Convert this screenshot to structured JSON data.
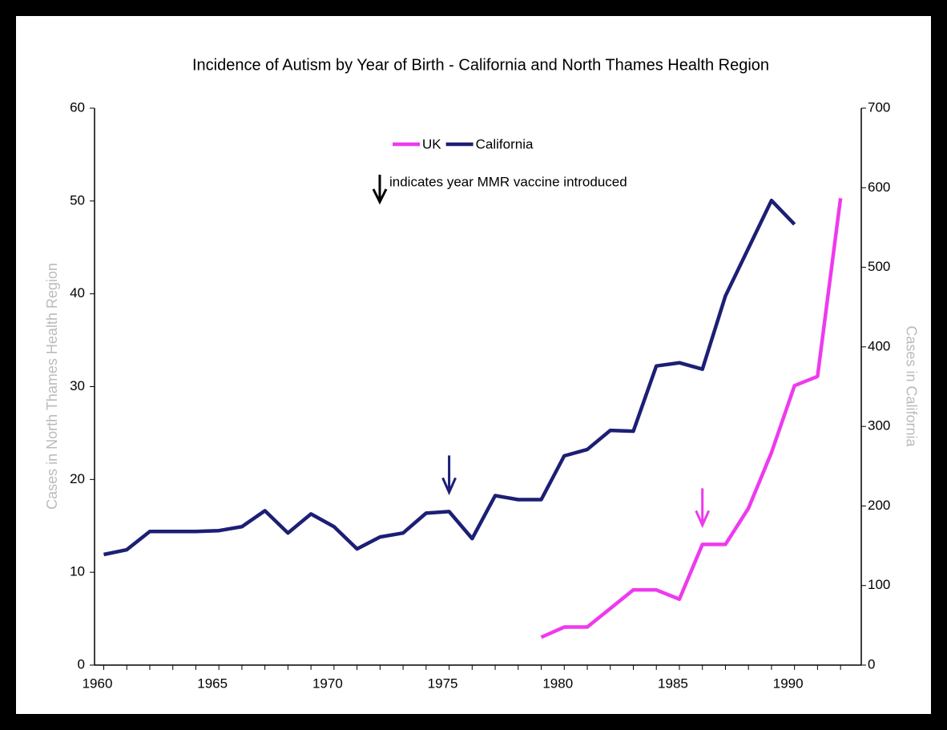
{
  "chart_data": {
    "type": "line",
    "title": "Incidence of Autism by Year of Birth - California and North Thames Health Region",
    "y_label": "Cases in North Thames Health Region",
    "y2_label": "Cases in California",
    "annotation": "indicates year MMR vaccine introduced",
    "x": [
      1960,
      1961,
      1962,
      1963,
      1964,
      1965,
      1966,
      1967,
      1968,
      1969,
      1970,
      1971,
      1972,
      1973,
      1974,
      1975,
      1976,
      1977,
      1978,
      1979,
      1980,
      1981,
      1982,
      1983,
      1984,
      1985,
      1986,
      1987,
      1988,
      1989,
      1990,
      1991,
      1992
    ],
    "series": [
      {
        "name": "UK",
        "color": "#ee3aee",
        "axis": "y",
        "mmr_year": 1986,
        "values": [
          null,
          null,
          null,
          null,
          null,
          null,
          null,
          null,
          null,
          null,
          null,
          null,
          null,
          null,
          null,
          null,
          null,
          null,
          null,
          3.0,
          4.1,
          4.1,
          6.1,
          8.1,
          8.1,
          7.1,
          13.0,
          13.0,
          16.9,
          22.9,
          30.1,
          31.1,
          50.3
        ]
      },
      {
        "name": "California",
        "color": "#1c1f74",
        "axis": "y2",
        "mmr_year": 1975,
        "values": [
          139,
          145,
          168,
          168,
          168,
          169,
          174,
          194,
          166,
          190,
          174,
          146,
          161,
          166,
          191,
          193,
          159,
          213,
          208,
          208,
          263,
          271,
          295,
          294,
          376,
          380,
          372,
          464,
          524,
          584,
          554,
          null,
          null
        ]
      }
    ],
    "xlim": [
      1959.6,
      1992.9
    ],
    "xticks": [
      1960,
      1965,
      1970,
      1975,
      1980,
      1985,
      1990
    ],
    "ylim": [
      0,
      60
    ],
    "yticks": [
      0,
      10,
      20,
      30,
      40,
      50,
      60
    ],
    "y2lim": [
      0,
      700
    ],
    "y2ticks": [
      0,
      100,
      200,
      300,
      400,
      500,
      600,
      700
    ],
    "legend": "top",
    "grid": false
  }
}
